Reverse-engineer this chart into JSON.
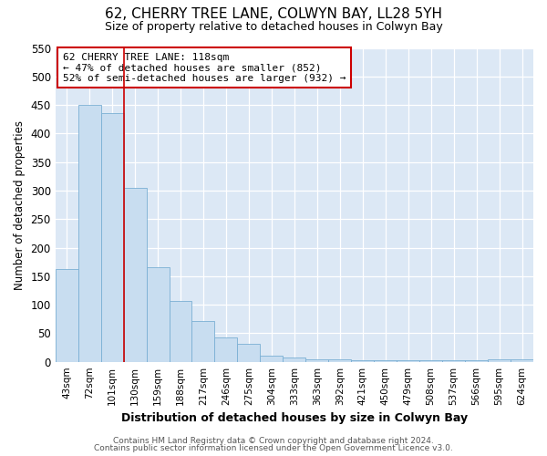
{
  "title": "62, CHERRY TREE LANE, COLWYN BAY, LL28 5YH",
  "subtitle": "Size of property relative to detached houses in Colwyn Bay",
  "xlabel": "Distribution of detached houses by size in Colwyn Bay",
  "ylabel": "Number of detached properties",
  "categories": [
    "43sqm",
    "72sqm",
    "101sqm",
    "130sqm",
    "159sqm",
    "188sqm",
    "217sqm",
    "246sqm",
    "275sqm",
    "304sqm",
    "333sqm",
    "363sqm",
    "392sqm",
    "421sqm",
    "450sqm",
    "479sqm",
    "508sqm",
    "537sqm",
    "566sqm",
    "595sqm",
    "624sqm"
  ],
  "values": [
    162,
    450,
    435,
    305,
    165,
    107,
    72,
    43,
    32,
    10,
    8,
    5,
    4,
    2,
    2,
    2,
    2,
    2,
    2,
    5,
    5
  ],
  "bar_color": "#c8ddf0",
  "bar_edge_color": "#7aafd4",
  "vline_x": 2.5,
  "vline_color": "#cc0000",
  "annotation_text": "62 CHERRY TREE LANE: 118sqm\n← 47% of detached houses are smaller (852)\n52% of semi-detached houses are larger (932) →",
  "annotation_box_color": "white",
  "annotation_box_edge": "#cc0000",
  "ylim": [
    0,
    550
  ],
  "yticks": [
    0,
    50,
    100,
    150,
    200,
    250,
    300,
    350,
    400,
    450,
    500,
    550
  ],
  "footer_line1": "Contains HM Land Registry data © Crown copyright and database right 2024.",
  "footer_line2": "Contains public sector information licensed under the Open Government Licence v3.0.",
  "fig_bg_color": "#ffffff",
  "plot_bg_color": "#dce8f5"
}
